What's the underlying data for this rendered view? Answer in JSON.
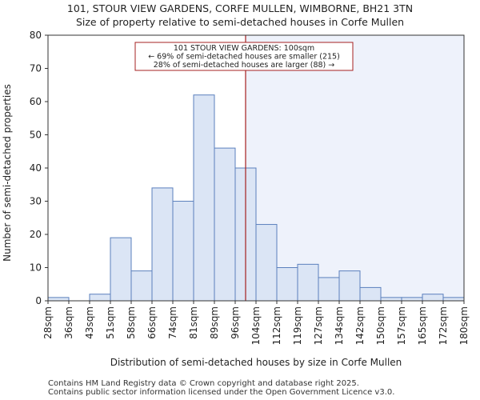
{
  "title_line1": "101, STOUR VIEW GARDENS, CORFE MULLEN, WIMBORNE, BH21 3TN",
  "title_line2": "Size of property relative to semi-detached houses in Corfe Mullen",
  "footer_line1": "Contains HM Land Registry data © Crown copyright and database right 2025.",
  "footer_line2": "Contains public sector information licensed under the Open Government Licence v3.0.",
  "colors": {
    "bar_fill": "#dbe5f5",
    "bar_stroke": "#5b80bd",
    "highlight_fill": "#eef2fb",
    "marker_line": "#a52020",
    "axis": "#333333"
  },
  "chart_data": {
    "type": "bar",
    "xlabel": "Distribution of semi-detached houses by size in Corfe Mullen",
    "ylabel": "Number of semi-detached properties",
    "ylim": [
      0,
      80
    ],
    "yticks": [
      0,
      10,
      20,
      30,
      40,
      50,
      60,
      70,
      80
    ],
    "bin_edges": [
      "28sqm",
      "36sqm",
      "43sqm",
      "51sqm",
      "58sqm",
      "66sqm",
      "74sqm",
      "81sqm",
      "89sqm",
      "96sqm",
      "104sqm",
      "112sqm",
      "119sqm",
      "127sqm",
      "134sqm",
      "142sqm",
      "150sqm",
      "157sqm",
      "165sqm",
      "172sqm",
      "180sqm"
    ],
    "values": [
      1,
      0,
      2,
      19,
      9,
      34,
      30,
      62,
      46,
      40,
      23,
      10,
      11,
      7,
      9,
      4,
      1,
      1,
      2,
      1
    ],
    "marker_bin_position": 9.5,
    "grid": false,
    "annotation": {
      "line1": "101 STOUR VIEW GARDENS: 100sqm",
      "line2": "← 69% of semi-detached houses are smaller (215)",
      "line3": "28% of semi-detached houses are larger (88) →"
    }
  }
}
